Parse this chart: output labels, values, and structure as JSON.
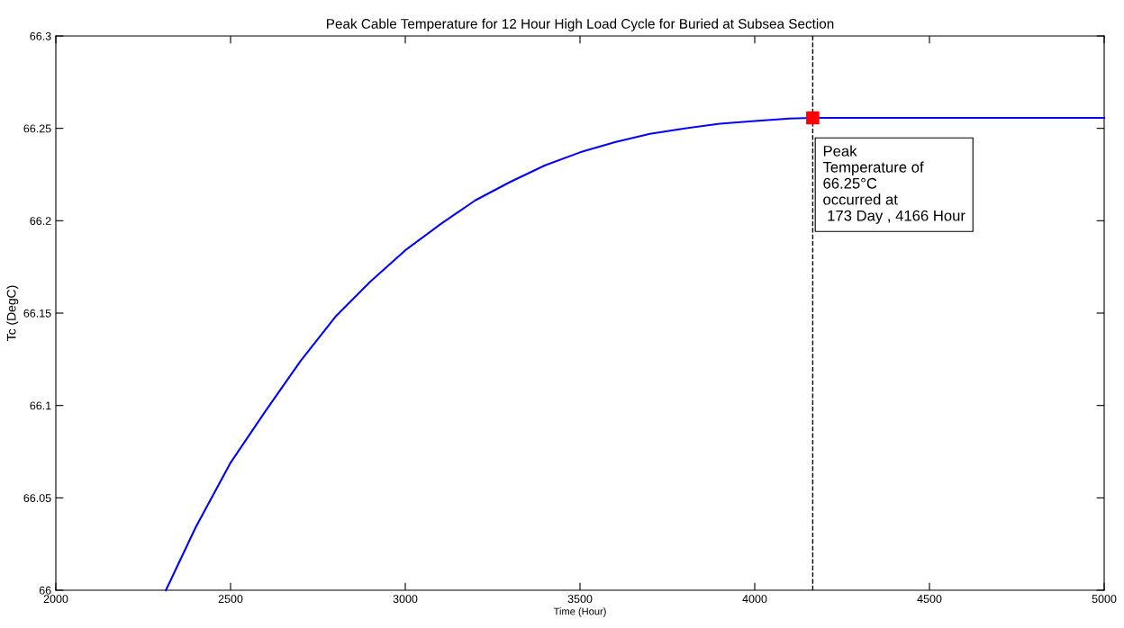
{
  "chart_data": {
    "type": "line",
    "title": "Peak Cable Temperature for 12 Hour High Load Cycle for Buried at Subsea Section",
    "xlabel": "Time (Hour)",
    "ylabel": "Tc (DegC)",
    "xlim": [
      2000,
      5000
    ],
    "xticks": [
      2000,
      2500,
      3000,
      3500,
      4000,
      4500,
      5000
    ],
    "ylim": [
      66,
      66.3
    ],
    "yticks": [
      66,
      66.05,
      66.1,
      66.15,
      66.2,
      66.25,
      66.3
    ],
    "grid": false,
    "legend": false,
    "line_style": "solid",
    "marker": "none",
    "series": [
      {
        "color": "#0000ff",
        "x": [
          2315,
          2400,
          2500,
          2600,
          2700,
          2800,
          2900,
          3000,
          3100,
          3200,
          3300,
          3400,
          3500,
          3600,
          3700,
          3800,
          3900,
          4000,
          4100,
          4165,
          5000
        ],
        "values": [
          66.0,
          66.034,
          66.069,
          66.097,
          66.124,
          66.148,
          66.167,
          66.184,
          66.198,
          66.211,
          66.221,
          66.23,
          66.237,
          66.2425,
          66.247,
          66.25,
          66.2525,
          66.254,
          66.2553,
          66.2557,
          66.2557
        ]
      },
      {
        "type": "scatter",
        "marker": "square",
        "color": "#ff0000",
        "x": [
          4166
        ],
        "values": [
          66.2557
        ]
      }
    ],
    "ref_lines": [
      {
        "axis": "x",
        "value": 4166,
        "color": "#000000",
        "line_style": "dashed"
      }
    ],
    "annotations": [
      {
        "text": "Peak\nTemperature of\n66.25°C\noccurred at\n 173 Day , 4166 Hour",
        "x": 4166,
        "y": 66.2557
      }
    ]
  }
}
